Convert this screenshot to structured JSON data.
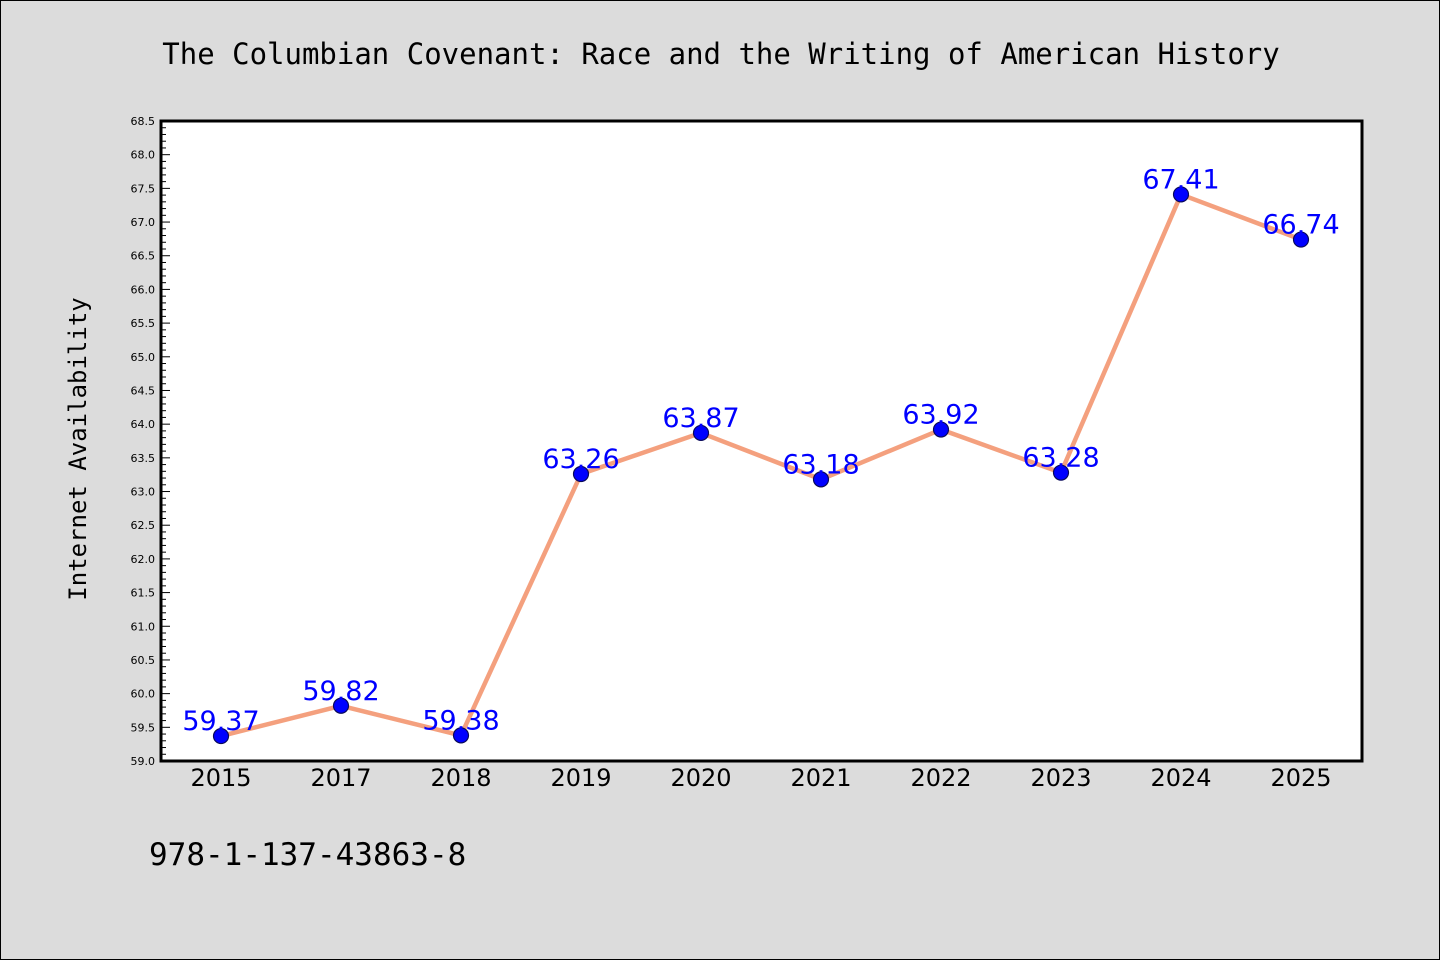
{
  "chart_data": {
    "type": "line",
    "title": "The Columbian Covenant: Race and the Writing of American History",
    "xlabel": "",
    "ylabel": "Internet Availability",
    "categories": [
      "2015",
      "2017",
      "2018",
      "2019",
      "2020",
      "2021",
      "2022",
      "2023",
      "2024",
      "2025"
    ],
    "series": [
      {
        "values": [
          59.37,
          59.82,
          59.38,
          63.26,
          63.87,
          63.18,
          63.92,
          63.28,
          67.41,
          66.74
        ],
        "data_labels": [
          "59.37",
          "59.82",
          "59.38",
          "63.26",
          "63.87",
          "63.18",
          "63.92",
          "63.28",
          "67.41",
          "66.74"
        ]
      }
    ],
    "ylim": [
      59.0,
      68.5
    ],
    "yticks": [
      "59.0",
      "59.5",
      "60.0",
      "60.5",
      "61.0",
      "61.5",
      "62.0",
      "62.5",
      "63.0",
      "63.5",
      "64.0",
      "64.5",
      "65.0",
      "65.5",
      "66.0",
      "66.5",
      "67.0",
      "67.5",
      "68.0",
      "68.5"
    ],
    "grid": false,
    "legend": "none",
    "colors": {
      "line": "#f4a07e",
      "marker": "#0000ff",
      "marker_edge": "#0a0a5a",
      "label": "#0000ff",
      "plot_background": "#ffffff",
      "figure_background": "#dcdcdc"
    }
  },
  "footer": {
    "isbn": "978-1-137-43863-8"
  }
}
